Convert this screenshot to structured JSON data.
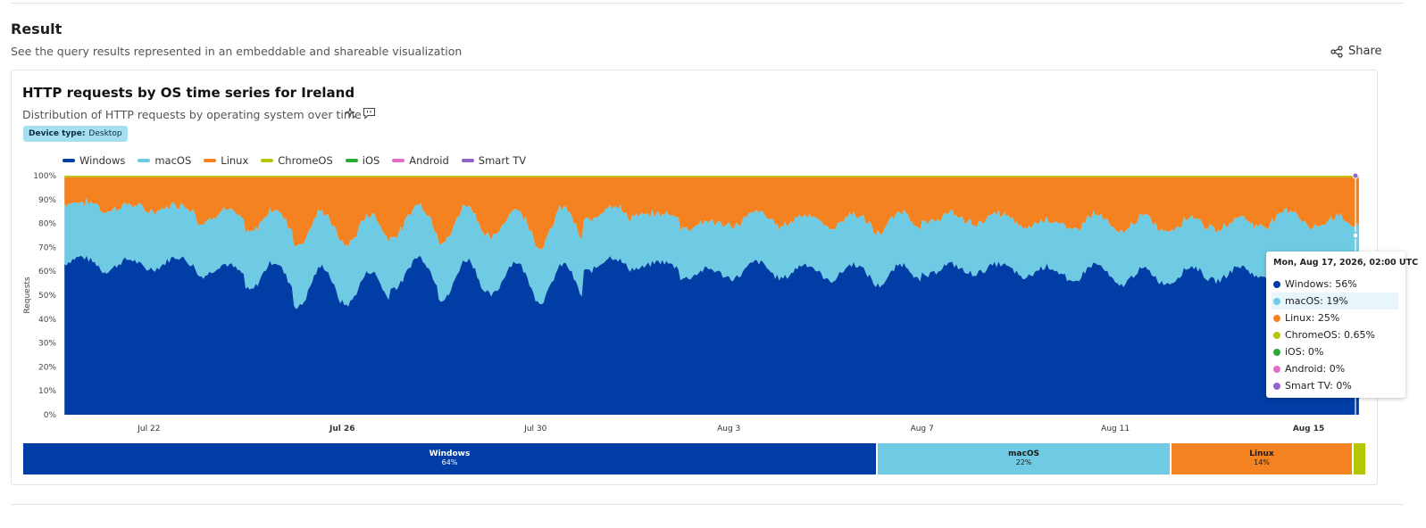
{
  "result": {
    "title": "Result",
    "subtitle": "See the query results represented in an embeddable and shareable visualization",
    "share_label": "Share"
  },
  "chart_header": {
    "title": "HTTP requests by OS time series for Ireland",
    "subtitle": "Distribution of HTTP requests by operating system over time",
    "badge_key": "Device type:",
    "badge_value": "Desktop"
  },
  "legend": [
    {
      "name": "Windows",
      "color": "#003da5"
    },
    {
      "name": "macOS",
      "color": "#6fcbe3"
    },
    {
      "name": "Linux",
      "color": "#f58220"
    },
    {
      "name": "ChromeOS",
      "color": "#b3c600"
    },
    {
      "name": "iOS",
      "color": "#2da836"
    },
    {
      "name": "Android",
      "color": "#e06ec3"
    },
    {
      "name": "Smart TV",
      "color": "#9064cb"
    }
  ],
  "tooltip": {
    "header": "Mon, Aug 17, 2026, 02:00 UTC",
    "rows": [
      {
        "label": "Windows: 56%",
        "color": "#003da5"
      },
      {
        "label": "macOS: 19%",
        "color": "#6fcbe3"
      },
      {
        "label": "Linux: 25%",
        "color": "#f58220"
      },
      {
        "label": "ChromeOS: 0.65%",
        "color": "#b3c600"
      },
      {
        "label": "iOS: 0%",
        "color": "#2da836"
      },
      {
        "label": "Android: 0%",
        "color": "#e06ec3"
      },
      {
        "label": "Smart TV: 0%",
        "color": "#9064cb"
      }
    ],
    "highlighted": "macOS: 19%"
  },
  "chart_data": {
    "type": "area",
    "stacked": true,
    "ylabel": "Requests",
    "y_ticks": [
      "0%",
      "10%",
      "20%",
      "30%",
      "40%",
      "50%",
      "60%",
      "70%",
      "80%",
      "90%",
      "100%"
    ],
    "ylim": [
      0,
      100
    ],
    "x_ticks": [
      {
        "label": "Jul 22",
        "day": 2,
        "bold": false
      },
      {
        "label": "Jul 26",
        "day": 6,
        "bold": true
      },
      {
        "label": "Jul 30",
        "day": 10,
        "bold": false
      },
      {
        "label": "Aug 3",
        "day": 14,
        "bold": false
      },
      {
        "label": "Aug 7",
        "day": 18,
        "bold": false
      },
      {
        "label": "Aug 11",
        "day": 22,
        "bold": false
      },
      {
        "label": "Aug 15",
        "day": 26,
        "bold": true
      }
    ],
    "x_range_days": [
      0.21,
      27.08
    ],
    "start_date": "Jul 20",
    "interval": "hourly",
    "daily": [
      {
        "date": "Jul 20",
        "windows_day": 66,
        "windows_night": 62,
        "macos_day": 23,
        "macos_night": 26
      },
      {
        "date": "Jul 21",
        "windows_day": 65,
        "windows_night": 60,
        "macos_day": 23,
        "macos_night": 25
      },
      {
        "date": "Jul 22",
        "windows_day": 66,
        "windows_night": 61,
        "macos_day": 22,
        "macos_night": 24
      },
      {
        "date": "Jul 23",
        "windows_day": 63,
        "windows_night": 58,
        "macos_day": 23,
        "macos_night": 22
      },
      {
        "date": "Jul 24",
        "windows_day": 64,
        "windows_night": 52,
        "macos_day": 22,
        "macos_night": 24
      },
      {
        "date": "Jul 25",
        "windows_day": 62,
        "windows_night": 45,
        "macos_day": 23,
        "macos_night": 26
      },
      {
        "date": "Jul 26",
        "windows_day": 60,
        "windows_night": 46,
        "macos_day": 24,
        "macos_night": 25
      },
      {
        "date": "Jul 27",
        "windows_day": 66,
        "windows_night": 53,
        "macos_day": 22,
        "macos_night": 22
      },
      {
        "date": "Jul 28",
        "windows_day": 65,
        "windows_night": 48,
        "macos_day": 23,
        "macos_night": 24
      },
      {
        "date": "Jul 29",
        "windows_day": 64,
        "windows_night": 50,
        "macos_day": 22,
        "macos_night": 24
      },
      {
        "date": "Jul 30",
        "windows_day": 63,
        "windows_night": 47,
        "macos_day": 24,
        "macos_night": 23
      },
      {
        "date": "Jul 31",
        "windows_day": 66,
        "windows_night": 60,
        "macos_day": 22,
        "macos_night": 21
      },
      {
        "date": "Aug 1",
        "windows_day": 64,
        "windows_night": 61,
        "macos_day": 20,
        "macos_night": 22
      },
      {
        "date": "Aug 2",
        "windows_day": 61,
        "windows_night": 57,
        "macos_day": 20,
        "macos_night": 21
      },
      {
        "date": "Aug 3",
        "windows_day": 64,
        "windows_night": 57,
        "macos_day": 21,
        "macos_night": 22
      },
      {
        "date": "Aug 4",
        "windows_day": 63,
        "windows_night": 57,
        "macos_day": 21,
        "macos_night": 22
      },
      {
        "date": "Aug 5",
        "windows_day": 63,
        "windows_night": 56,
        "macos_day": 21,
        "macos_night": 22
      },
      {
        "date": "Aug 6",
        "windows_day": 63,
        "windows_night": 54,
        "macos_day": 22,
        "macos_night": 22
      },
      {
        "date": "Aug 7",
        "windows_day": 63,
        "windows_night": 58,
        "macos_day": 21,
        "macos_night": 22
      },
      {
        "date": "Aug 8",
        "windows_day": 63,
        "windows_night": 59,
        "macos_day": 21,
        "macos_night": 21
      },
      {
        "date": "Aug 9",
        "windows_day": 62,
        "windows_night": 57,
        "macos_day": 20,
        "macos_night": 21
      },
      {
        "date": "Aug 10",
        "windows_day": 63,
        "windows_night": 55,
        "macos_day": 21,
        "macos_night": 22
      },
      {
        "date": "Aug 11",
        "windows_day": 61,
        "windows_night": 54,
        "macos_day": 22,
        "macos_night": 22
      },
      {
        "date": "Aug 12",
        "windows_day": 62,
        "windows_night": 55,
        "macos_day": 21,
        "macos_night": 22
      },
      {
        "date": "Aug 13",
        "windows_day": 62,
        "windows_night": 56,
        "macos_day": 21,
        "macos_night": 21
      },
      {
        "date": "Aug 14",
        "windows_day": 64,
        "windows_night": 58,
        "macos_day": 22,
        "macos_night": 21
      },
      {
        "date": "Aug 15",
        "windows_day": 60,
        "windows_night": 56,
        "macos_day": 23,
        "macos_night": 22
      },
      {
        "date": "Aug 16",
        "windows_day": 60,
        "windows_night": 58,
        "macos_day": 21,
        "macos_night": 20
      },
      {
        "date": "Aug 17",
        "windows_day": 56,
        "windows_night": 56,
        "macos_day": 19,
        "macos_night": 19
      }
    ],
    "chromeos_pct": 0.65,
    "ios_pct": 0,
    "android_pct": 0,
    "smarttv_pct": 0,
    "hover_point": {
      "date": "Aug 17",
      "windows": 56,
      "macos": 19,
      "linux": 25,
      "chromeos": 0.65
    },
    "share_summary": [
      {
        "name": "Windows",
        "pct": "64%",
        "value": 64,
        "color": "#003da5",
        "text_color": "#ffffff"
      },
      {
        "name": "macOS",
        "pct": "22%",
        "value": 22,
        "color": "#6fcbe3",
        "text_color": "#1a1a1a"
      },
      {
        "name": "Linux",
        "pct": "14%",
        "value": 13.6,
        "color": "#f58220",
        "text_color": "#1a1a1a"
      },
      {
        "name": "",
        "pct": "",
        "value": 0.9,
        "color": "#b3c600",
        "text_color": "#1a1a1a"
      }
    ]
  }
}
